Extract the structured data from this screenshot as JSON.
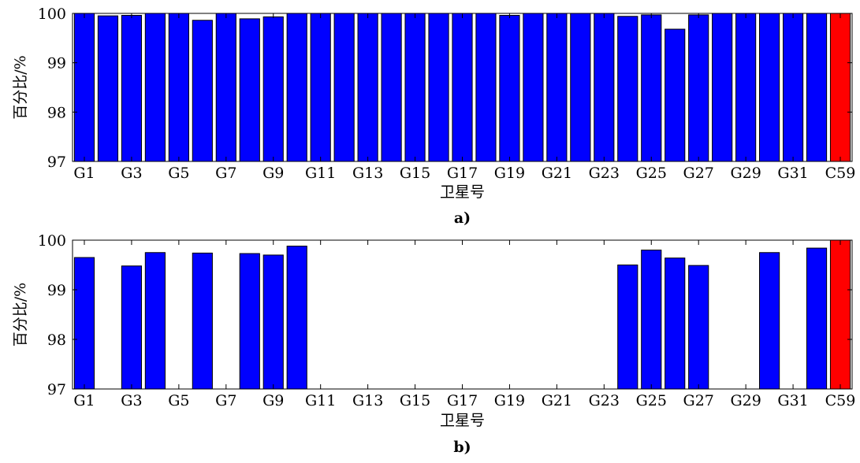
{
  "colors": {
    "gps": "#0000ff",
    "bds": "#ff0000",
    "edge": "#000000"
  },
  "chart_data": [
    {
      "type": "bar",
      "panel": "a)",
      "xlabel": "卫星号",
      "ylabel": "百分比/%",
      "ylim": [
        97,
        100
      ],
      "yticks": [
        "97",
        "98",
        "99",
        "100"
      ],
      "xticklabels": [
        "G1",
        "G3",
        "G5",
        "G7",
        "G9",
        "G11",
        "G13",
        "G15",
        "G17",
        "G19",
        "G21",
        "G23",
        "G25",
        "G27",
        "G29",
        "G31",
        "C59"
      ],
      "categories": [
        "G1",
        "G2",
        "G3",
        "G4",
        "G5",
        "G6",
        "G7",
        "G8",
        "G9",
        "G10",
        "G11",
        "G12",
        "G13",
        "G14",
        "G15",
        "G16",
        "G17",
        "G18",
        "G19",
        "G20",
        "G21",
        "G22",
        "G23",
        "G24",
        "G25",
        "G26",
        "G27",
        "G28",
        "G29",
        "G30",
        "G31",
        "G32",
        "C59"
      ],
      "values": [
        100,
        99.95,
        99.96,
        100,
        100,
        99.86,
        100,
        99.89,
        99.93,
        100,
        100,
        100,
        100,
        100,
        100,
        100,
        100,
        100,
        99.96,
        100,
        100,
        100,
        100,
        99.94,
        99.97,
        99.68,
        99.97,
        100,
        100,
        100,
        100,
        100,
        100
      ]
    },
    {
      "type": "bar",
      "panel": "b)",
      "xlabel": "卫星号",
      "ylabel": "百分比/%",
      "ylim": [
        97,
        100
      ],
      "yticks": [
        "97",
        "98",
        "99",
        "100"
      ],
      "xticklabels": [
        "G1",
        "G3",
        "G5",
        "G7",
        "G9",
        "G11",
        "G13",
        "G15",
        "G17",
        "G19",
        "G21",
        "G23",
        "G25",
        "G27",
        "G29",
        "G31",
        "C59"
      ],
      "categories": [
        "G1",
        "G2",
        "G3",
        "G4",
        "G5",
        "G6",
        "G7",
        "G8",
        "G9",
        "G10",
        "G11",
        "G12",
        "G13",
        "G14",
        "G15",
        "G16",
        "G17",
        "G18",
        "G19",
        "G20",
        "G21",
        "G22",
        "G23",
        "G24",
        "G25",
        "G26",
        "G27",
        "G28",
        "G29",
        "G30",
        "G31",
        "G32",
        "C59"
      ],
      "values": [
        99.65,
        null,
        99.48,
        99.75,
        null,
        99.74,
        null,
        99.73,
        99.7,
        99.88,
        null,
        null,
        null,
        null,
        null,
        null,
        null,
        null,
        null,
        null,
        null,
        null,
        null,
        99.5,
        99.8,
        99.64,
        99.49,
        null,
        null,
        99.75,
        null,
        99.84,
        100
      ]
    }
  ]
}
